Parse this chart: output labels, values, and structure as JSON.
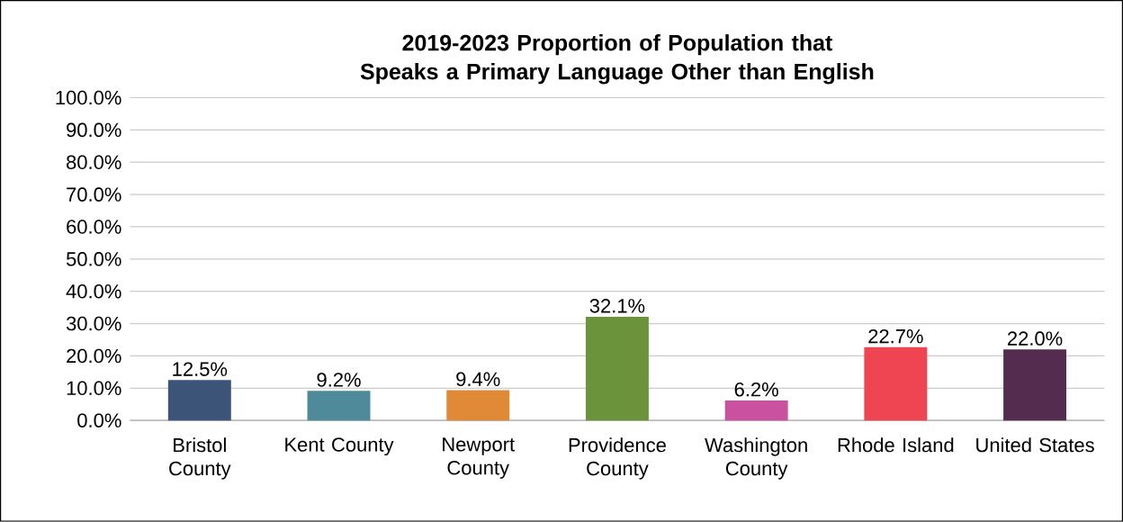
{
  "chart_data": {
    "type": "bar",
    "title": "2019-2023 Proportion of Population that Speaks a Primary Language Other than English",
    "categories": [
      "Bristol County",
      "Kent County",
      "Newport County",
      "Providence County",
      "Washington County",
      "Rhode Island",
      "United States"
    ],
    "values": [
      12.5,
      9.2,
      9.4,
      32.1,
      6.2,
      22.7,
      22.0
    ],
    "colors": [
      "#3b5478",
      "#4e8a9a",
      "#e08a38",
      "#6b933c",
      "#c9519f",
      "#ef4452",
      "#532c50"
    ],
    "value_labels": [
      "12.5%",
      "9.2%",
      "9.4%",
      "32.1%",
      "6.2%",
      "22.7%",
      "22.0%"
    ],
    "ylim": [
      0,
      100
    ],
    "yticks": [
      {
        "value": 0,
        "label": "0.0%"
      },
      {
        "value": 10,
        "label": "10.0%"
      },
      {
        "value": 20,
        "label": "20.0%"
      },
      {
        "value": 30,
        "label": "30.0%"
      },
      {
        "value": 40,
        "label": "40.0%"
      },
      {
        "value": 50,
        "label": "50.0%"
      },
      {
        "value": 60,
        "label": "60.0%"
      },
      {
        "value": 70,
        "label": "70.0%"
      },
      {
        "value": 80,
        "label": "80.0%"
      },
      {
        "value": 90,
        "label": "90.0%"
      },
      {
        "value": 100,
        "label": "100.0%"
      }
    ],
    "grid": "y",
    "legend": false
  }
}
